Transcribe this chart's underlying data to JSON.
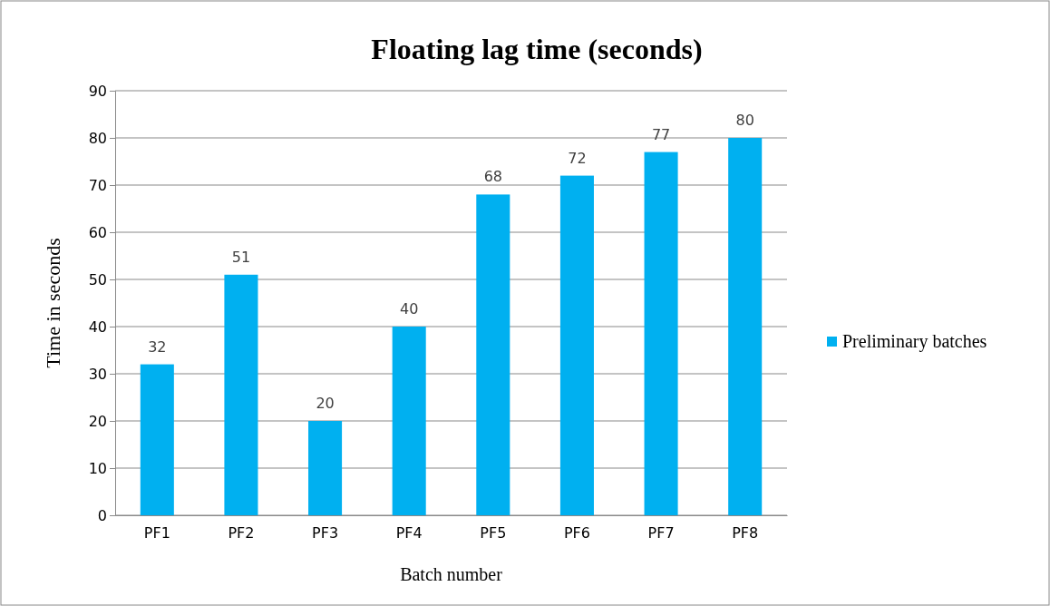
{
  "chart_data": {
    "type": "bar",
    "title": "Floating lag time (seconds)",
    "xlabel": "Batch number",
    "ylabel": "Time in seconds",
    "categories": [
      "PF1",
      "PF2",
      "PF3",
      "PF4",
      "PF5",
      "PF6",
      "PF7",
      "PF8"
    ],
    "series": [
      {
        "name": "Preliminary batches",
        "color": "#00b0f0",
        "values": [
          32,
          51,
          20,
          40,
          68,
          72,
          77,
          80
        ]
      }
    ],
    "ylim": [
      0,
      90
    ],
    "yticks": [
      0,
      10,
      20,
      30,
      40,
      50,
      60,
      70,
      80,
      90
    ],
    "grid": "y",
    "legend": "right",
    "data_labels": true
  }
}
